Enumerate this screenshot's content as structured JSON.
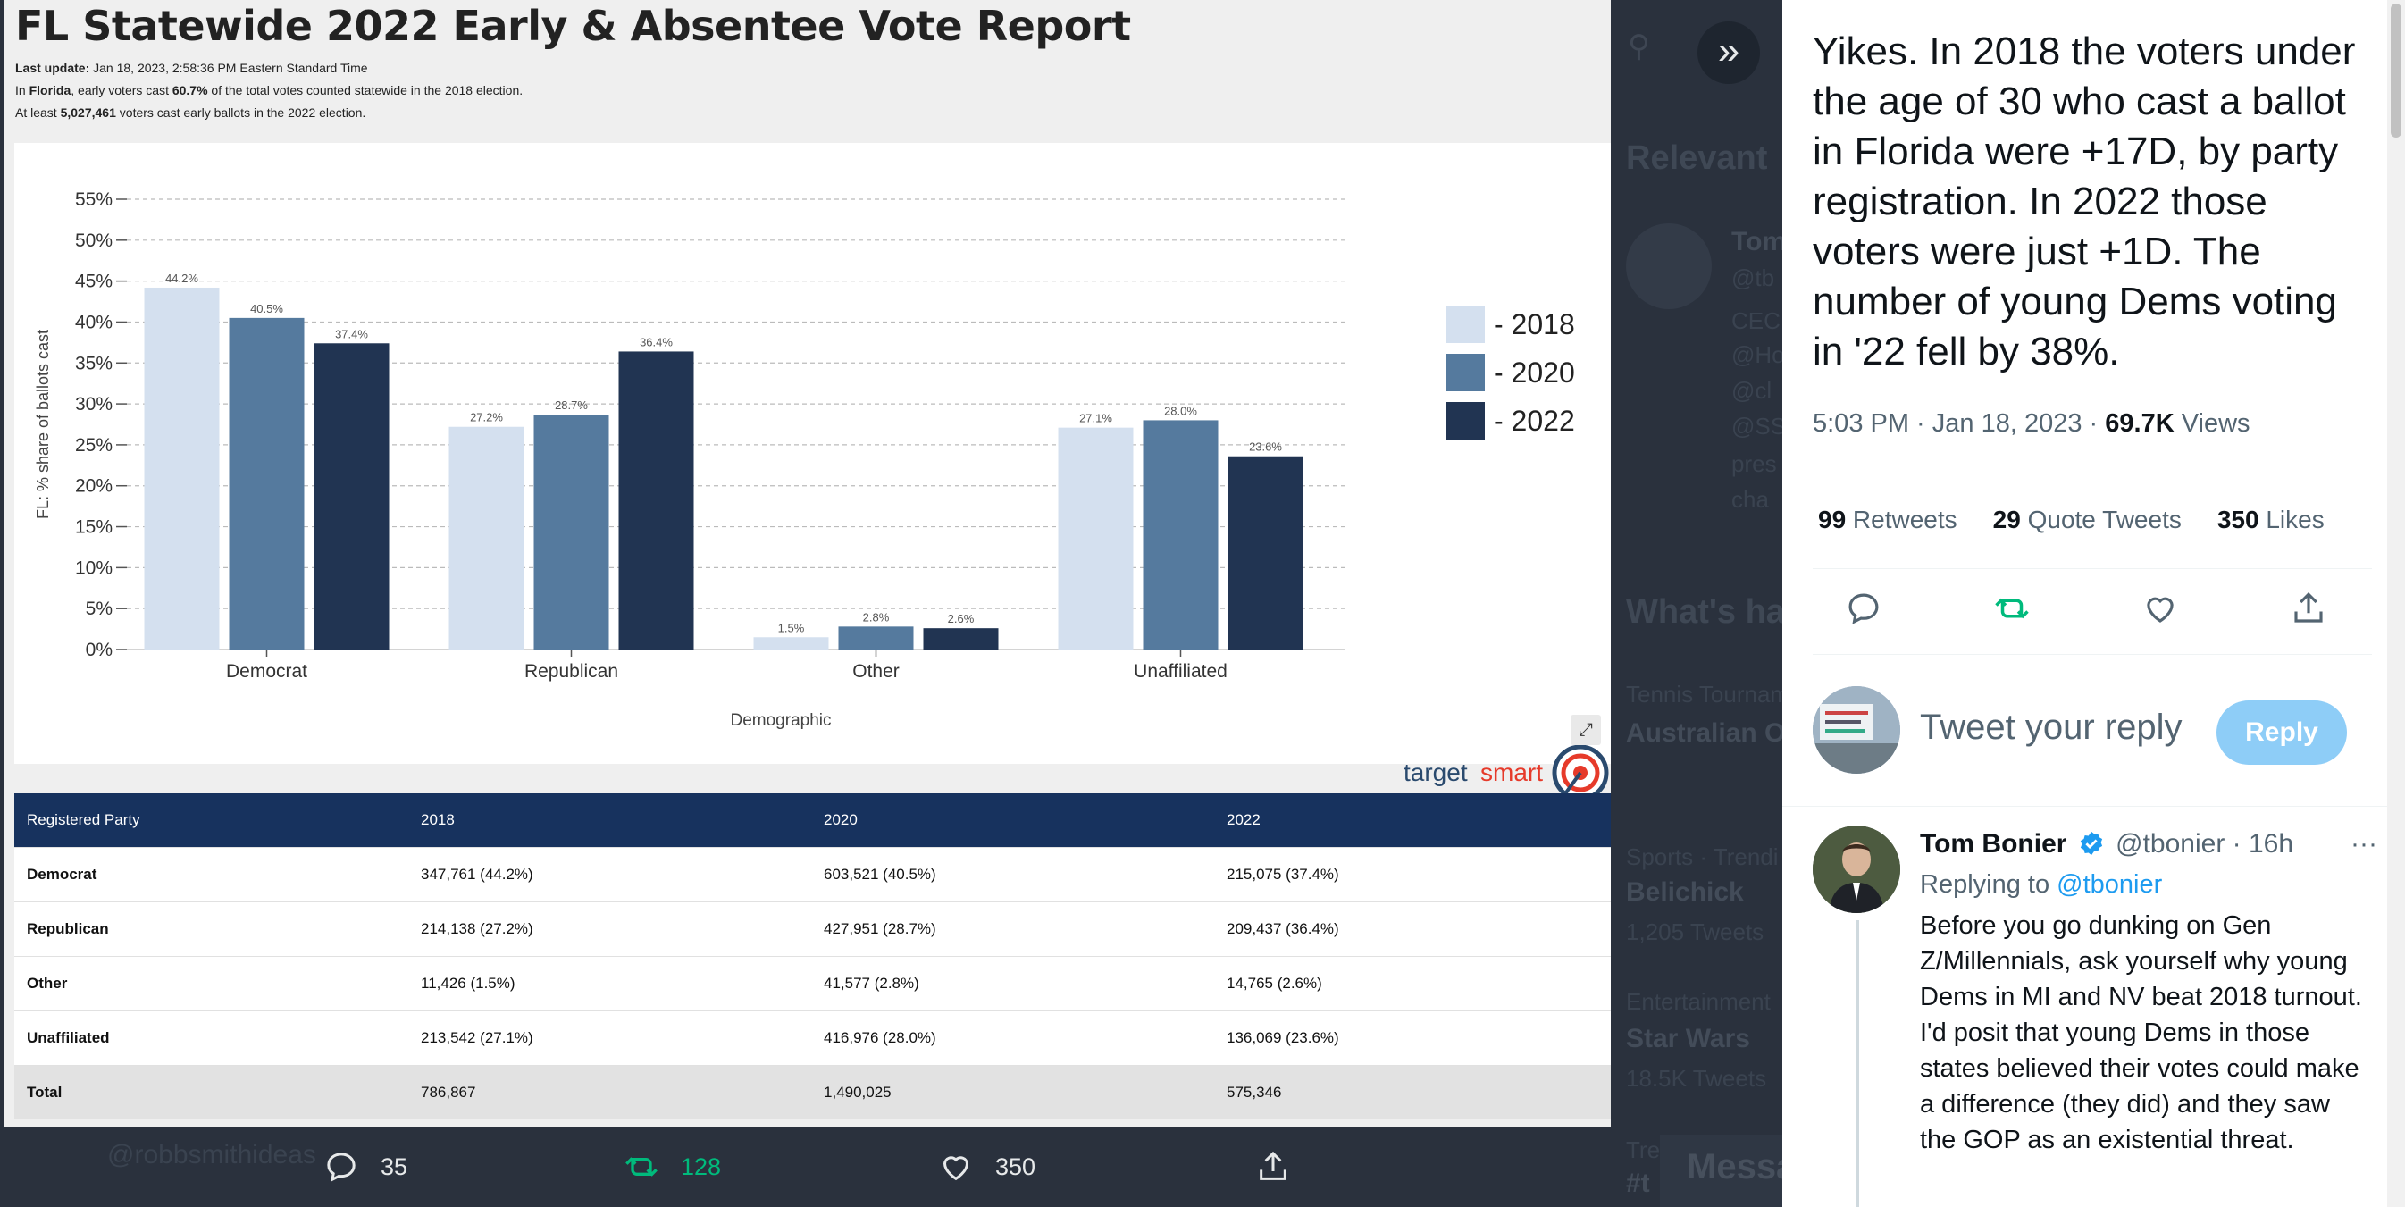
{
  "report": {
    "title": "FL Statewide 2022 Early & Absentee Vote Report",
    "last_update_label": "Last update:",
    "last_update_value": "Jan 18, 2023, 2:58:36 PM Eastern Standard Time",
    "line2_pre": "In ",
    "line2_state": "Florida",
    "line2_mid": ", early voters cast ",
    "line2_pct": "60.7%",
    "line2_post": " of the total votes counted statewide in the 2018 election.",
    "line3_pre": "At least ",
    "line3_count": "5,027,461",
    "line3_post": " voters cast early ballots in the 2022 election.",
    "logo_text_a": "target",
    "logo_text_b": "smart",
    "expand_icon": "expand-icon"
  },
  "chart_data": {
    "type": "bar",
    "categories": [
      "Democrat",
      "Republican",
      "Other",
      "Unaffiliated"
    ],
    "series": [
      {
        "name": "- 2018",
        "color": "#d4e0ef",
        "values": [
          44.2,
          27.2,
          1.5,
          27.1
        ]
      },
      {
        "name": "- 2020",
        "color": "#557a9e",
        "values": [
          40.5,
          28.7,
          2.8,
          28.0
        ]
      },
      {
        "name": "- 2022",
        "color": "#213452",
        "values": [
          37.4,
          36.4,
          2.6,
          23.6
        ]
      }
    ],
    "ylabel": "FL: % share of ballots cast",
    "xlabel": "Demographic",
    "ylim": [
      0,
      55
    ],
    "yticks": [
      0,
      5,
      10,
      15,
      20,
      25,
      30,
      35,
      40,
      45,
      50,
      55
    ],
    "grid": true,
    "legend": "right"
  },
  "table": {
    "headers": [
      "Registered Party",
      "2018",
      "2020",
      "2022"
    ],
    "rows": [
      [
        "Democrat",
        "347,761 (44.2%)",
        "603,521 (40.5%)",
        "215,075 (37.4%)"
      ],
      [
        "Republican",
        "214,138 (27.2%)",
        "427,951 (28.7%)",
        "209,437 (36.4%)"
      ],
      [
        "Other",
        "11,426 (1.5%)",
        "41,577 (2.8%)",
        "14,765 (2.6%)"
      ],
      [
        "Unaffiliated",
        "213,542 (27.1%)",
        "416,976 (28.0%)",
        "136,069 (23.6%)"
      ]
    ],
    "total": [
      "Total",
      "786,867",
      "1,490,025",
      "575,346"
    ]
  },
  "bottom_actions": {
    "ghost_handle": "@robbsmithideas",
    "reply_count": "35",
    "retweet_count": "128",
    "like_count": "350"
  },
  "background": {
    "relevant": "Relevant",
    "tom": "Tom",
    "at_tb": "@tb",
    "ceo": "CEC",
    "h1": "@Ho",
    "h2": "@cl",
    "h3": "@SS",
    "pres": "pres",
    "chan": "cha",
    "whats": "What's ha",
    "t1_small": "Tennis Tournam",
    "t1_big": "Australian O",
    "t2_small": "Sports · Trendi",
    "t2_big": "Belichick",
    "t2_count": "1,205 Tweets",
    "t3_small": "Entertainment",
    "t3_big": "Star Wars",
    "t3_count": "18.5K Tweets",
    "t4_small": "Tre",
    "t4_big": "#t",
    "messages": "Messa"
  },
  "tweet": {
    "text": "Yikes. In 2018 the voters under the age of 30 who cast a ballot in Florida were +17D, by party registration. In 2022 those voters were just +1D. The number of young Dems voting in '22 fell by 38%.",
    "time": "5:03 PM · Jan 18, 2023 · ",
    "views_count": "69.7K",
    "views_label": " Views",
    "retweets_count": "99",
    "retweets_label": " Retweets",
    "quotes_count": "29",
    "quotes_label": " Quote Tweets",
    "likes_count": "350",
    "likes_label": " Likes",
    "reply_placeholder": "Tweet your reply",
    "reply_button": "Reply",
    "accent": "#1d9bf0",
    "retweet_color": "#00ba7c"
  },
  "reply": {
    "name": "Tom Bonier",
    "handle": "@tbonier · 16h",
    "more": "···",
    "replying_label": "Replying to ",
    "replying_handle": "@tbonier",
    "text": "Before you go dunking on Gen Z/Millennials, ask yourself why young Dems in MI and NV beat 2018 turnout. I'd posit that young Dems in those states believed their votes could make a difference (they did) and they saw the GOP as an existential threat."
  }
}
